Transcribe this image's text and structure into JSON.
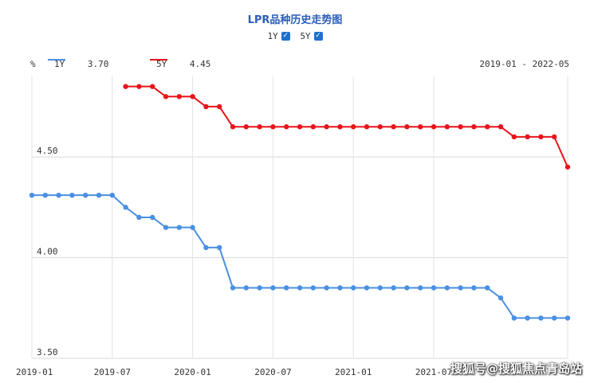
{
  "title": "LPR品种历史走势图",
  "toggles": [
    {
      "label": "1Y",
      "checked": true
    },
    {
      "label": "5Y",
      "checked": true
    }
  ],
  "legend": {
    "unit": "%",
    "date_range": "2019-01 - 2022-05",
    "series": [
      {
        "name": "1Y",
        "value": "3.70",
        "color": "#4a90e2"
      },
      {
        "name": "5Y",
        "value": "4.45",
        "color": "#e8141b"
      }
    ]
  },
  "watermark": "搜狐号@搜狐焦点青岛站",
  "chart_data": {
    "type": "line",
    "ylim": [
      3.5,
      4.9
    ],
    "yticks": [
      {
        "value": 3.5,
        "label": "3.50"
      },
      {
        "value": 4.0,
        "label": "4.00"
      },
      {
        "value": 4.5,
        "label": "4.50"
      }
    ],
    "xticks": [
      "2019-01",
      "2019-07",
      "2020-01",
      "2020-07",
      "2021-01",
      "2021-07"
    ],
    "x_start": "2019-01",
    "grid": true,
    "series": [
      {
        "name": "1Y",
        "color": "#4a90e2",
        "values": [
          4.31,
          4.31,
          4.31,
          4.31,
          4.31,
          4.31,
          4.31,
          4.25,
          4.2,
          4.2,
          4.15,
          4.15,
          4.15,
          4.05,
          4.05,
          3.85,
          3.85,
          3.85,
          3.85,
          3.85,
          3.85,
          3.85,
          3.85,
          3.85,
          3.85,
          3.85,
          3.85,
          3.85,
          3.85,
          3.85,
          3.85,
          3.85,
          3.85,
          3.85,
          3.85,
          3.8,
          3.7,
          3.7,
          3.7,
          3.7,
          3.7
        ]
      },
      {
        "name": "5Y",
        "color": "#e8141b",
        "values": [
          null,
          null,
          null,
          null,
          null,
          null,
          null,
          4.85,
          4.85,
          4.85,
          4.8,
          4.8,
          4.8,
          4.75,
          4.75,
          4.65,
          4.65,
          4.65,
          4.65,
          4.65,
          4.65,
          4.65,
          4.65,
          4.65,
          4.65,
          4.65,
          4.65,
          4.65,
          4.65,
          4.65,
          4.65,
          4.65,
          4.65,
          4.65,
          4.65,
          4.65,
          4.6,
          4.6,
          4.6,
          4.6,
          4.45
        ]
      }
    ]
  }
}
